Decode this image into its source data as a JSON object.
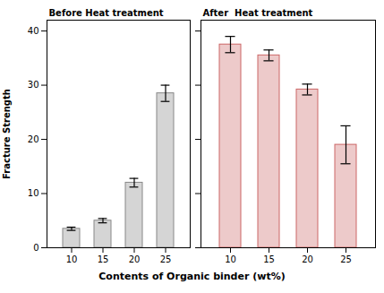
{
  "chart_data": [
    {
      "type": "bar",
      "categories": [
        "10",
        "15",
        "20",
        "25"
      ],
      "values": [
        3.5,
        5.0,
        12.0,
        28.5
      ],
      "errors": [
        0.3,
        0.4,
        0.8,
        1.5
      ],
      "color": "#888888",
      "annotation": "Before Heat treatment",
      "xlabel": "Contents of Organic binder (wt%)",
      "ylabel": "Fracture Strength",
      "ylim": [
        0,
        42
      ],
      "yticks": [
        0,
        10,
        20,
        30,
        40
      ]
    },
    {
      "type": "bar",
      "categories": [
        "10",
        "15",
        "20",
        "25"
      ],
      "values": [
        37.5,
        35.5,
        29.2,
        19.0
      ],
      "errors": [
        1.5,
        1.0,
        1.0,
        3.5
      ],
      "color": "#cc6666",
      "annotation": "After  Heat treatment",
      "ylim": [
        0,
        42
      ],
      "yticks": [
        0,
        10,
        20,
        30,
        40
      ],
      "tick_labels": "x"
    }
  ]
}
